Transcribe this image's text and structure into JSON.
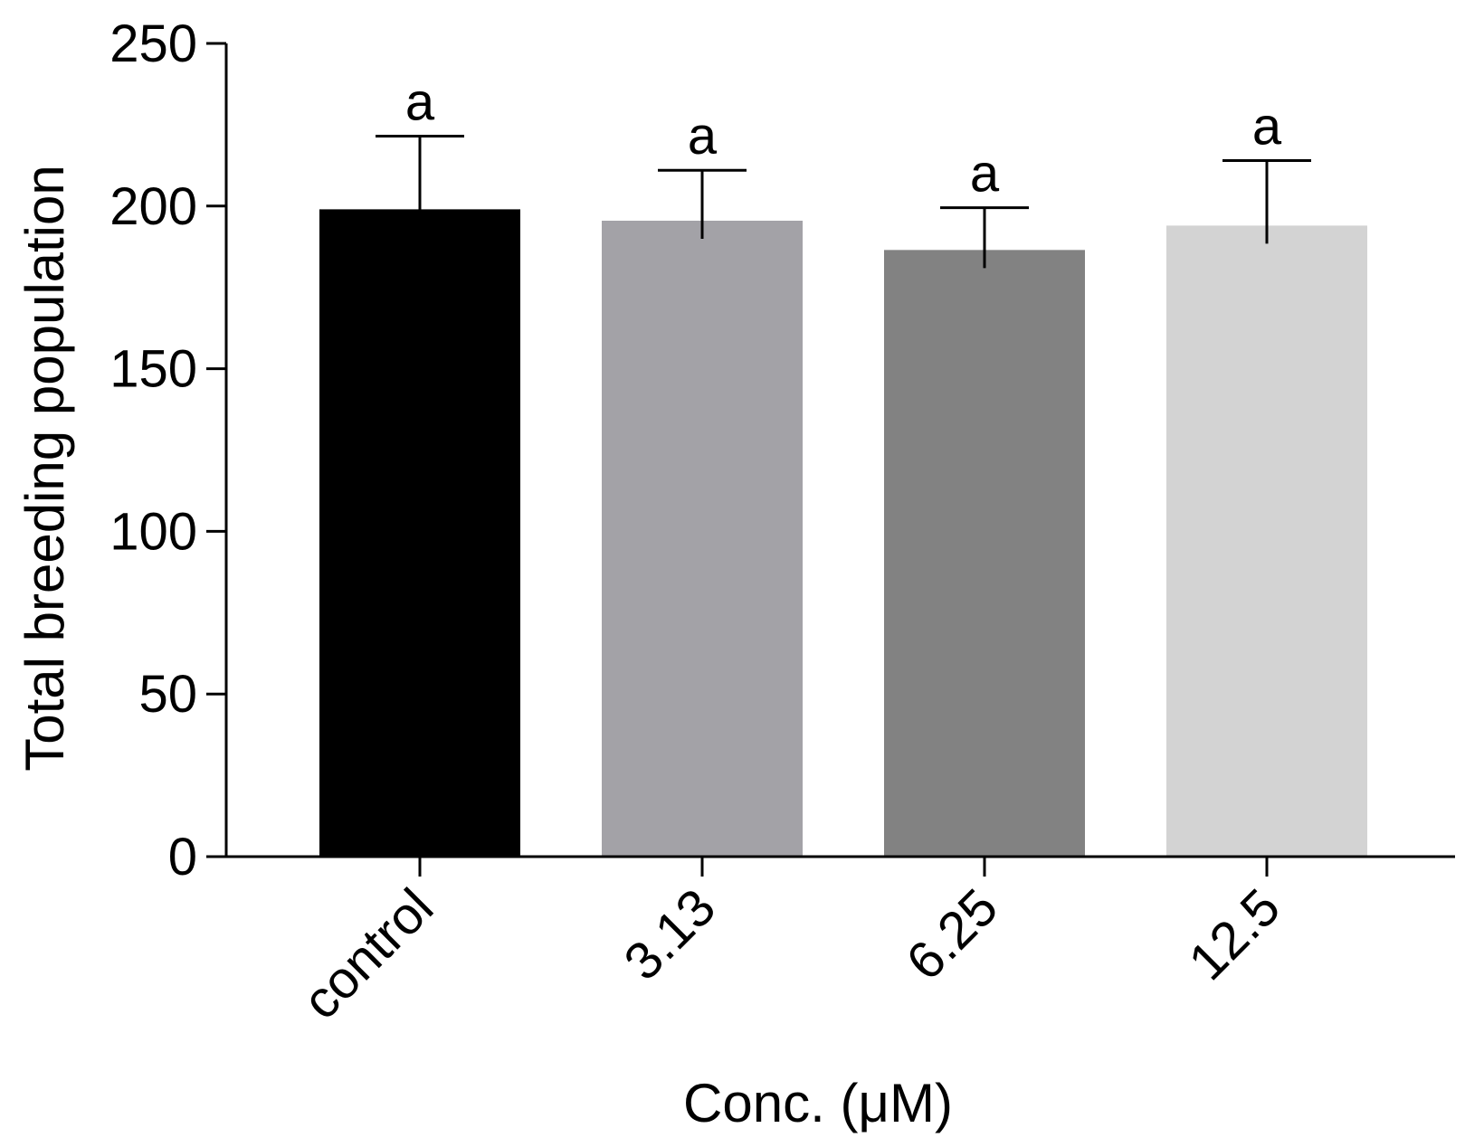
{
  "chart_data": {
    "type": "bar",
    "categories": [
      "control",
      "3.13",
      "6.25",
      "12.5"
    ],
    "values": [
      199,
      195.5,
      186.5,
      194
    ],
    "errors": [
      22.5,
      15.5,
      13,
      20
    ],
    "significance": [
      "a",
      "a",
      "a",
      "a"
    ],
    "colors": [
      "#000000",
      "#a3a2a7",
      "#828282",
      "#d3d3d3"
    ],
    "xlabel": "Conc. (μM)",
    "ylabel": "Total breeding population",
    "ylim": [
      0,
      250
    ],
    "yticks": [
      0,
      50,
      100,
      150,
      200,
      250
    ],
    "grid": false,
    "legend": "none"
  }
}
